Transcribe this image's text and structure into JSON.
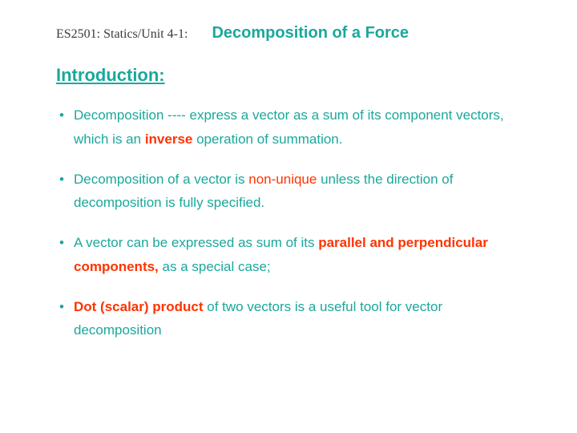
{
  "colors": {
    "teal": "#1aa89c",
    "red": "#ff3300",
    "dark_text": "#3a3a3a",
    "background": "#ffffff"
  },
  "typography": {
    "body_font": "Arial, sans-serif",
    "course_font": "Times New Roman, serif",
    "title_size": 20,
    "heading_size": 22,
    "body_size": 17,
    "course_size": 16,
    "line_height": 1.75
  },
  "header": {
    "course_label": "ES2501: Statics/Unit 4-1:",
    "title": "Decomposition of a Force"
  },
  "section_heading": "Introduction:",
  "bullets": [
    {
      "pre": "Decomposition ---- express a vector as a sum of its component vectors, which is an ",
      "emph": "inverse",
      "emph_bold": true,
      "post": " operation of summation."
    },
    {
      "pre": "Decomposition of a vector is ",
      "emph": "non-unique",
      "emph_bold": false,
      "post": " unless the direction of decomposition is fully specified."
    },
    {
      "pre": "A vector can be expressed as sum of its ",
      "emph": "parallel and perpendicular components,",
      "emph_bold": true,
      "post": " as a special case;"
    },
    {
      "pre": "",
      "emph": "Dot (scalar) product",
      "emph_bold": true,
      "post": " of two vectors is a useful tool for vector decomposition"
    }
  ]
}
